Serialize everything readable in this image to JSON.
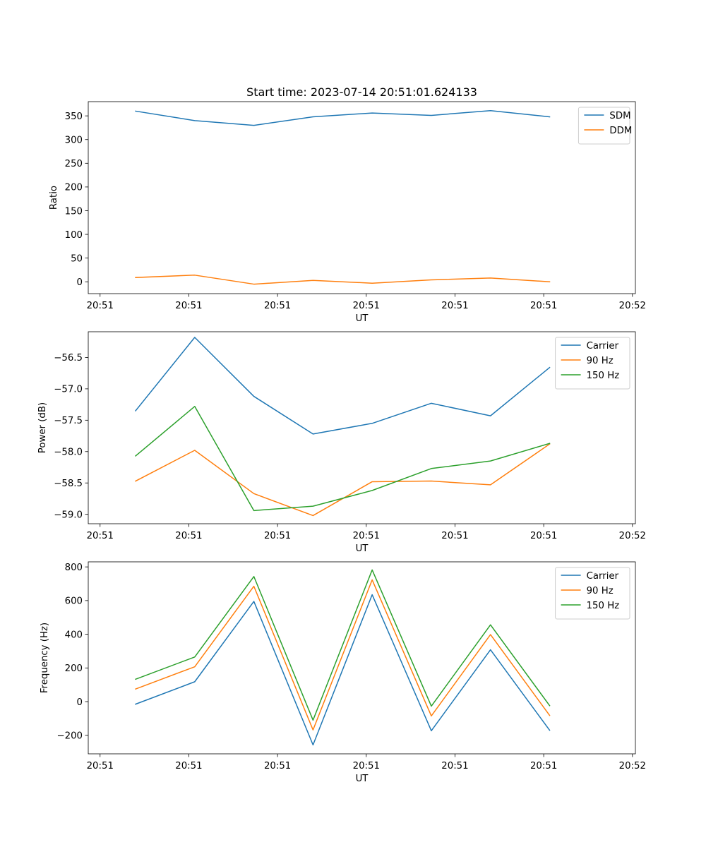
{
  "chart_data": [
    {
      "type": "line",
      "title": "Start time: 2023-07-14 20:51:01.624133",
      "xlabel": "UT",
      "ylabel": "Ratio",
      "x": [
        1,
        2,
        3,
        4,
        5,
        6,
        7,
        8
      ],
      "xlim": [
        0.2,
        9.45
      ],
      "xticks": [
        0.4,
        1.9,
        3.4,
        4.9,
        6.4,
        7.9,
        9.4
      ],
      "xtick_labels": [
        "20:51",
        "20:51",
        "20:51",
        "20:51",
        "20:51",
        "20:51",
        "20:52"
      ],
      "ylim": [
        -25,
        380
      ],
      "yticks": [
        0,
        50,
        100,
        150,
        200,
        250,
        300,
        350
      ],
      "ytick_labels": [
        "0",
        "50",
        "100",
        "150",
        "200",
        "250",
        "300",
        "350"
      ],
      "legend": "top-right",
      "series": [
        {
          "name": "SDM",
          "color": "#1f77b4",
          "values": [
            360,
            340,
            330,
            348,
            356,
            351,
            361,
            348
          ]
        },
        {
          "name": "DDM",
          "color": "#ff7f0e",
          "values": [
            9,
            14,
            -5,
            3,
            -3,
            4,
            8,
            0
          ]
        }
      ]
    },
    {
      "type": "line",
      "title": "",
      "xlabel": "UT",
      "ylabel": "Power (dB)",
      "x": [
        1,
        2,
        3,
        4,
        5,
        6,
        7,
        8
      ],
      "xlim": [
        0.2,
        9.45
      ],
      "xticks": [
        0.4,
        1.9,
        3.4,
        4.9,
        6.4,
        7.9,
        9.4
      ],
      "xtick_labels": [
        "20:51",
        "20:51",
        "20:51",
        "20:51",
        "20:51",
        "20:51",
        "20:52"
      ],
      "ylim": [
        -59.15,
        -56.09
      ],
      "yticks": [
        -59.0,
        -58.5,
        -58.0,
        -57.5,
        -57.0,
        -56.5
      ],
      "ytick_labels": [
        "−59.0",
        "−58.5",
        "−58.0",
        "−57.5",
        "−57.0",
        "−56.5"
      ],
      "legend": "top-right",
      "series": [
        {
          "name": "Carrier",
          "color": "#1f77b4",
          "values": [
            -57.35,
            -56.18,
            -57.12,
            -57.72,
            -57.55,
            -57.23,
            -57.43,
            -56.66
          ]
        },
        {
          "name": "90 Hz",
          "color": "#ff7f0e",
          "values": [
            -58.47,
            -57.98,
            -58.67,
            -59.02,
            -58.48,
            -58.47,
            -58.53,
            -57.88
          ]
        },
        {
          "name": "150 Hz",
          "color": "#2ca02c",
          "values": [
            -58.07,
            -57.28,
            -58.94,
            -58.87,
            -58.62,
            -58.27,
            -58.15,
            -57.87
          ]
        }
      ]
    },
    {
      "type": "line",
      "title": "",
      "xlabel": "UT",
      "ylabel": "Frequency (Hz)",
      "x": [
        1,
        2,
        3,
        4,
        5,
        6,
        7,
        8
      ],
      "xlim": [
        0.2,
        9.45
      ],
      "xticks": [
        0.4,
        1.9,
        3.4,
        4.9,
        6.4,
        7.9,
        9.4
      ],
      "xtick_labels": [
        "20:51",
        "20:51",
        "20:51",
        "20:51",
        "20:51",
        "20:51",
        "20:52"
      ],
      "ylim": [
        -310,
        830
      ],
      "yticks": [
        -200,
        0,
        200,
        400,
        600,
        800
      ],
      "ytick_labels": [
        "−200",
        "0",
        "200",
        "400",
        "600",
        "800"
      ],
      "legend": "top-right",
      "series": [
        {
          "name": "Carrier",
          "color": "#1f77b4",
          "values": [
            -15,
            118,
            595,
            -257,
            635,
            -173,
            308,
            -170
          ]
        },
        {
          "name": "90 Hz",
          "color": "#ff7f0e",
          "values": [
            75,
            207,
            685,
            -168,
            723,
            -85,
            398,
            -82
          ]
        },
        {
          "name": "150 Hz",
          "color": "#2ca02c",
          "values": [
            133,
            265,
            743,
            -110,
            782,
            -27,
            456,
            -24
          ]
        }
      ]
    }
  ]
}
